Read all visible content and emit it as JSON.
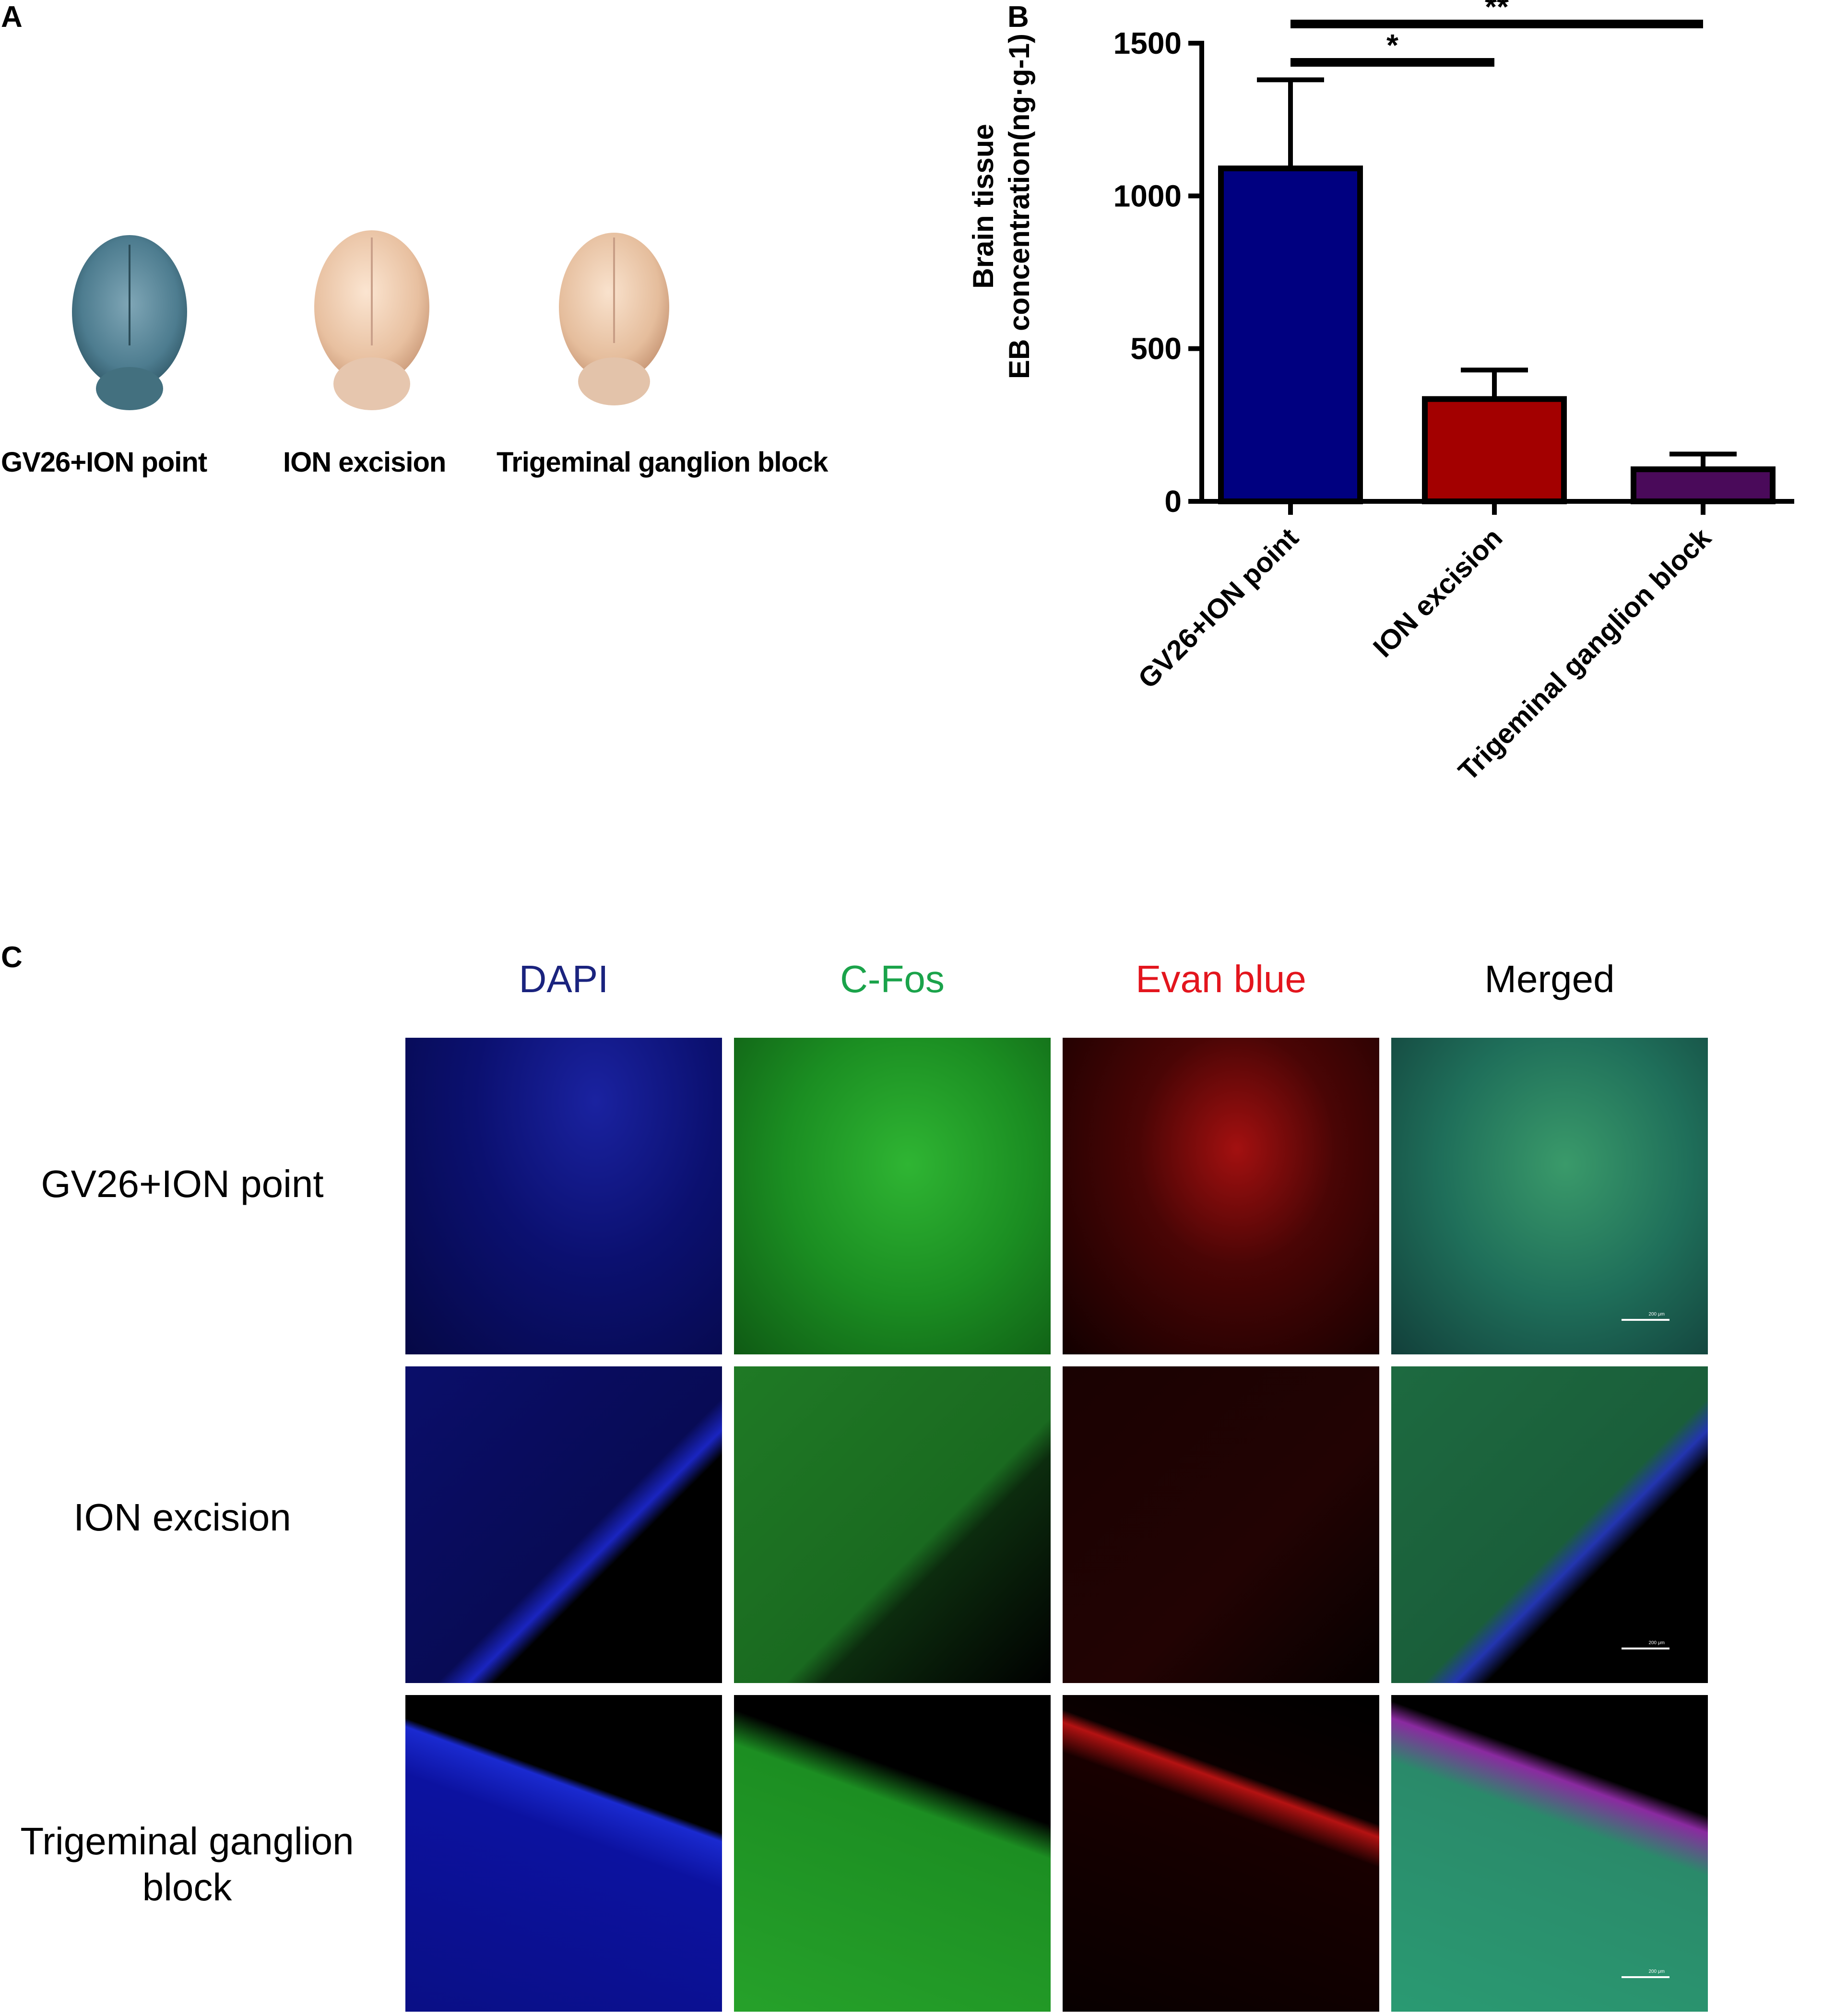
{
  "panels": {
    "a": "A",
    "b": "B",
    "c": "C"
  },
  "panel_a": {
    "brains": [
      {
        "label": "GV26+ION point",
        "color": "#4f7e90"
      },
      {
        "label": "ION excision",
        "color": "#e8c3a3"
      },
      {
        "label": "Trigeminal ganglion block",
        "color": "#e6c1a0"
      }
    ]
  },
  "chart_data": {
    "type": "bar",
    "categories": [
      "GV26+ION point",
      "ION excision",
      "Trigeminal ganglion block"
    ],
    "values": [
      1090,
      335,
      105
    ],
    "errors": [
      290,
      95,
      50
    ],
    "colors": [
      "#000080",
      "#a30000",
      "#4a0a5a"
    ],
    "ylabel": [
      "Brain tissue",
      "EB  concentration(ng·g-1)"
    ],
    "ylim": [
      0,
      1500
    ],
    "yticks": [
      0,
      500,
      1000,
      1500
    ],
    "significance": [
      {
        "from": 0,
        "to": 1,
        "label": "*"
      },
      {
        "from": 0,
        "to": 2,
        "label": "**"
      }
    ]
  },
  "panel_c": {
    "columns": [
      {
        "label": "DAPI",
        "color": "#1a237e"
      },
      {
        "label": "C-Fos",
        "color": "#1aa34a"
      },
      {
        "label": "Evan blue",
        "color": "#e3151d"
      },
      {
        "label": "Merged",
        "color": "#000000"
      }
    ],
    "rows": [
      {
        "label": "GV26+ION point"
      },
      {
        "label": "ION excision"
      },
      {
        "label": "Trigeminal ganglion block"
      }
    ],
    "scale_bar": "200 μm"
  }
}
